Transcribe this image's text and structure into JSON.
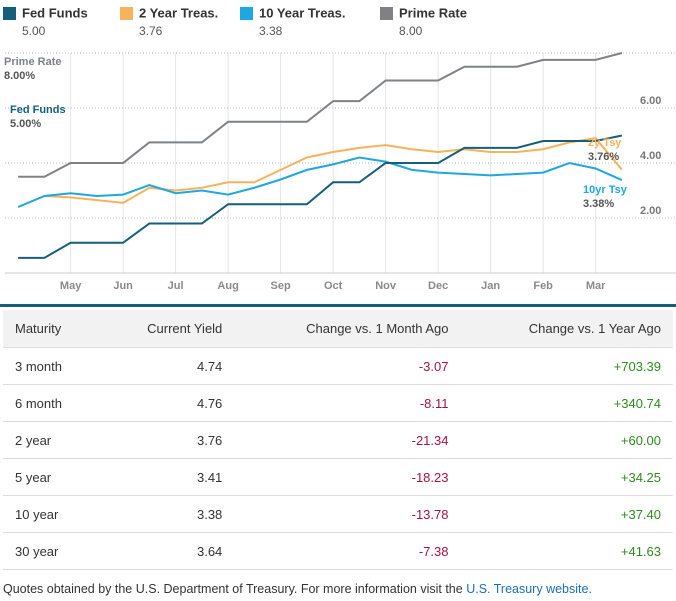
{
  "chart_data": {
    "type": "line",
    "categories": [
      null,
      null,
      "May",
      null,
      "Jun",
      null,
      "Jul",
      null,
      "Aug",
      null,
      "Sep",
      null,
      "Oct",
      null,
      "Nov",
      null,
      "Dec",
      null,
      "Jan",
      null,
      "Feb",
      null,
      "Mar",
      null
    ],
    "series": [
      {
        "name": "Fed Funds",
        "latest": "5.00",
        "color": "#155f7a",
        "values": [
          0.55,
          0.55,
          1.1,
          1.1,
          1.1,
          1.8,
          1.8,
          1.8,
          2.5,
          2.5,
          2.5,
          2.5,
          3.3,
          3.3,
          4.0,
          4.0,
          4.0,
          4.55,
          4.55,
          4.55,
          4.8,
          4.8,
          4.8,
          5.0
        ]
      },
      {
        "name": "2 Year Treas.",
        "latest": "3.76",
        "color": "#f7b25c",
        "values": [
          2.4,
          2.8,
          2.75,
          2.65,
          2.55,
          3.1,
          3.0,
          3.1,
          3.3,
          3.3,
          3.75,
          4.2,
          4.4,
          4.55,
          4.65,
          4.5,
          4.4,
          4.5,
          4.4,
          4.4,
          4.5,
          4.75,
          4.9,
          3.76
        ]
      },
      {
        "name": "10 Year Treas.",
        "latest": "3.38",
        "color": "#1fa7e1",
        "values": [
          2.4,
          2.8,
          2.9,
          2.8,
          2.85,
          3.2,
          2.9,
          3.0,
          2.85,
          3.1,
          3.4,
          3.75,
          3.95,
          4.2,
          4.05,
          3.75,
          3.65,
          3.6,
          3.55,
          3.6,
          3.65,
          4.0,
          3.8,
          3.38
        ]
      },
      {
        "name": "Prime Rate",
        "latest": "8.00",
        "color": "#7f8184",
        "values": [
          3.5,
          3.5,
          4.0,
          4.0,
          4.0,
          4.75,
          4.75,
          4.75,
          5.5,
          5.5,
          5.5,
          5.5,
          6.25,
          6.25,
          7.0,
          7.0,
          7.0,
          7.5,
          7.5,
          7.5,
          7.75,
          7.75,
          7.75,
          8.0
        ]
      }
    ],
    "ylim": [
      0,
      8
    ],
    "yticks": [
      {
        "value": 2,
        "label": "2.00"
      },
      {
        "value": 4,
        "label": "4.00"
      },
      {
        "value": 6,
        "label": "6.00"
      }
    ],
    "grid": true,
    "annotations": [
      {
        "series": 3,
        "label": "Prime Rate",
        "value": "8.00%"
      },
      {
        "series": 0,
        "label": "Fed Funds",
        "value": "5.00%"
      },
      {
        "series": 1,
        "label": "2y Tsy",
        "value": "3.76%"
      },
      {
        "series": 2,
        "label": "10yr Tsy",
        "value": "3.38%"
      }
    ]
  },
  "table": {
    "header": [
      "Maturity",
      "Current Yield",
      "Change vs. 1 Month Ago",
      "Change vs. 1 Year Ago"
    ],
    "column_colors": [
      null,
      null,
      "#a3143f",
      "#2e8b1e"
    ],
    "rows": [
      [
        "3 month",
        "4.74",
        "-3.07",
        "+703.39"
      ],
      [
        "6 month",
        "4.76",
        "-8.11",
        "+340.74"
      ],
      [
        "2 year",
        "3.76",
        "-21.34",
        "+60.00"
      ],
      [
        "5 year",
        "3.41",
        "-18.23",
        "+34.25"
      ],
      [
        "10 year",
        "3.38",
        "-13.78",
        "+37.40"
      ],
      [
        "30 year",
        "3.64",
        "-7.38",
        "+41.63"
      ]
    ]
  },
  "footer": {
    "text": "Quotes obtained by the U.S. Department of Treasury. For more information visit the",
    "link": "U.S. Treasury website."
  }
}
